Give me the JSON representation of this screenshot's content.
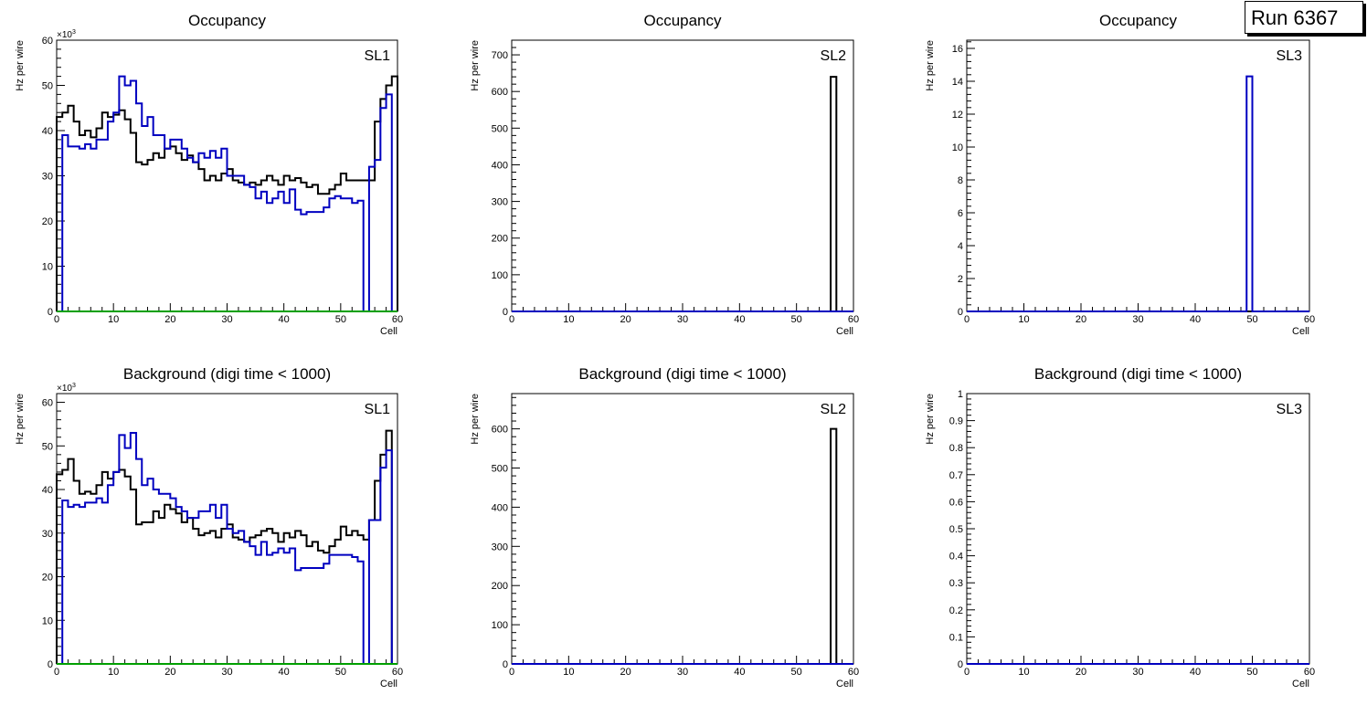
{
  "canvas": {
    "run_label": "Run 6367",
    "colors": {
      "frame": "#000000",
      "series_black": "#000000",
      "series_blue": "#0000c0",
      "series_green": "#00a000",
      "background": "#ffffff"
    }
  },
  "chart_data": [
    {
      "type": "histogram",
      "title": "Occupancy",
      "label": "SL1",
      "xlabel": "Cell",
      "ylabel": "Hz per wire",
      "xlim": [
        0,
        60
      ],
      "ylim": [
        0,
        60
      ],
      "multiplier": "×10",
      "multiplier_exp": "3",
      "xticks": [
        "0",
        "10",
        "20",
        "30",
        "40",
        "50",
        "60"
      ],
      "yticks": [
        "0",
        "10",
        "20",
        "30",
        "40",
        "50",
        "60"
      ],
      "ytick_values": [
        0,
        10,
        20,
        30,
        40,
        50,
        60
      ],
      "series": [
        {
          "name": "layer-black",
          "color": "#000000",
          "values": [
            43,
            44,
            45.5,
            42,
            39,
            40,
            38.5,
            40.5,
            44,
            43,
            43.5,
            44.5,
            42.5,
            39.5,
            33,
            32.5,
            33.5,
            35,
            34,
            36,
            36.5,
            35,
            33.5,
            34.5,
            33,
            31.5,
            29,
            30,
            29,
            30.5,
            31.5,
            29,
            28.5,
            28,
            28.5,
            28,
            29,
            30,
            29,
            28,
            30,
            29,
            29.5,
            28.5,
            27.5,
            28,
            26,
            26,
            27,
            28,
            30.5,
            29,
            29,
            29,
            29,
            29,
            42,
            47,
            50,
            52
          ]
        },
        {
          "name": "layer-blue",
          "color": "#0000c0",
          "values": [
            0,
            39,
            36.5,
            36.5,
            36,
            37,
            36,
            38,
            38,
            42,
            44,
            52,
            50,
            51,
            46,
            41,
            43,
            39,
            39,
            36,
            38,
            38,
            36,
            34,
            33,
            35,
            34,
            35.5,
            34,
            36,
            30,
            30,
            30,
            28,
            27.5,
            25,
            26.5,
            24,
            25,
            26.5,
            24,
            27,
            22.5,
            21.5,
            22,
            22,
            22,
            23,
            25,
            25.5,
            25,
            25,
            24,
            24.5,
            0,
            32,
            33.5,
            45,
            48,
            0
          ]
        },
        {
          "name": "layer-green",
          "color": "#00a000",
          "values": [
            0,
            0,
            0,
            0,
            0,
            0,
            0,
            0,
            0,
            0,
            0,
            0,
            0,
            0,
            0,
            0,
            0,
            0,
            0,
            0,
            0,
            0,
            0,
            0,
            0,
            0,
            0,
            0,
            0,
            0,
            0,
            0,
            0,
            0,
            0,
            0,
            0,
            0,
            0,
            0,
            0,
            0,
            0,
            0,
            0,
            0,
            0,
            0,
            0,
            0,
            0,
            0,
            0,
            0,
            0,
            0,
            0,
            0,
            0,
            0
          ]
        }
      ]
    },
    {
      "type": "histogram",
      "title": "Occupancy",
      "label": "SL2",
      "xlabel": "Cell",
      "ylabel": "Hz per wire",
      "xlim": [
        0,
        60
      ],
      "ylim": [
        0,
        740
      ],
      "xticks": [
        "0",
        "10",
        "20",
        "30",
        "40",
        "50",
        "60"
      ],
      "yticks": [
        "0",
        "100",
        "200",
        "300",
        "400",
        "500",
        "600",
        "700"
      ],
      "ytick_values": [
        0,
        100,
        200,
        300,
        400,
        500,
        600,
        700
      ],
      "series": [
        {
          "name": "layer-black",
          "color": "#000000",
          "spikes": [
            [
              56,
              640
            ]
          ]
        },
        {
          "name": "layer-blue",
          "color": "#0000c0",
          "spikes": []
        }
      ]
    },
    {
      "type": "histogram",
      "title": "Occupancy",
      "label": "SL3",
      "xlabel": "Cell",
      "ylabel": "Hz per wire",
      "xlim": [
        0,
        60
      ],
      "ylim": [
        0,
        16.5
      ],
      "xticks": [
        "0",
        "10",
        "20",
        "30",
        "40",
        "50",
        "60"
      ],
      "yticks": [
        "0",
        "2",
        "4",
        "6",
        "8",
        "10",
        "12",
        "14",
        "16"
      ],
      "ytick_values": [
        0,
        2,
        4,
        6,
        8,
        10,
        12,
        14,
        16
      ],
      "series": [
        {
          "name": "layer-black",
          "color": "#000000",
          "spikes": []
        },
        {
          "name": "layer-blue",
          "color": "#0000c0",
          "spikes": [
            [
              49,
              14.3
            ]
          ]
        }
      ]
    },
    {
      "type": "histogram",
      "title": "Background (digi time < 1000)",
      "label": "SL1",
      "xlabel": "Cell",
      "ylabel": "Hz per wire",
      "xlim": [
        0,
        60
      ],
      "ylim": [
        0,
        62
      ],
      "multiplier": "×10",
      "multiplier_exp": "3",
      "xticks": [
        "0",
        "10",
        "20",
        "30",
        "40",
        "50",
        "60"
      ],
      "yticks": [
        "0",
        "10",
        "20",
        "30",
        "40",
        "50",
        "60"
      ],
      "ytick_values": [
        0,
        10,
        20,
        30,
        40,
        50,
        60
      ],
      "series": [
        {
          "name": "layer-black",
          "color": "#000000",
          "values": [
            43.5,
            44.5,
            47,
            42,
            39,
            39.5,
            39,
            41,
            44,
            42.5,
            44,
            44.5,
            43,
            40,
            32,
            32.5,
            32.5,
            35,
            33.5,
            36.5,
            35.5,
            34.5,
            32.5,
            33.5,
            31,
            29.5,
            30,
            30.5,
            29,
            31,
            32,
            29,
            28.5,
            28,
            29,
            29.5,
            30.5,
            31,
            30,
            28,
            30,
            29,
            30.5,
            29.5,
            27,
            28,
            26,
            25.5,
            27,
            28.5,
            31.5,
            29.5,
            30.5,
            29.5,
            28.5,
            33,
            42,
            48,
            53.5,
            0
          ]
        },
        {
          "name": "layer-blue",
          "color": "#0000c0",
          "values": [
            0,
            37.5,
            36,
            36.5,
            36,
            37,
            37,
            38,
            37,
            41,
            44,
            52.5,
            49.5,
            53,
            47,
            41,
            42.5,
            40,
            39,
            39,
            38,
            36,
            35,
            33.5,
            33.5,
            35,
            35,
            36.5,
            33.5,
            36.5,
            31,
            30,
            30.5,
            28,
            27,
            25,
            28,
            25,
            25.5,
            26.5,
            25.5,
            26.5,
            21.5,
            22,
            22,
            22,
            22,
            23,
            25,
            25,
            25,
            25,
            24.5,
            23.5,
            0,
            33,
            33,
            45,
            49,
            0
          ]
        },
        {
          "name": "layer-green",
          "color": "#00a000",
          "values": [
            0,
            0,
            0,
            0,
            0,
            0,
            0,
            0,
            0,
            0,
            0,
            0,
            0,
            0,
            0,
            0,
            0,
            0,
            0,
            0,
            0,
            0,
            0,
            0,
            0,
            0,
            0,
            0,
            0,
            0,
            0,
            0,
            0,
            0,
            0,
            0,
            0,
            0,
            0,
            0,
            0,
            0,
            0,
            0,
            0,
            0,
            0,
            0,
            0,
            0,
            0,
            0,
            0,
            0,
            0,
            0,
            0,
            0,
            0,
            0
          ]
        }
      ]
    },
    {
      "type": "histogram",
      "title": "Background (digi time < 1000)",
      "label": "SL2",
      "xlabel": "Cell",
      "ylabel": "Hz per wire",
      "xlim": [
        0,
        60
      ],
      "ylim": [
        0,
        690
      ],
      "xticks": [
        "0",
        "10",
        "20",
        "30",
        "40",
        "50",
        "60"
      ],
      "yticks": [
        "0",
        "100",
        "200",
        "300",
        "400",
        "500",
        "600"
      ],
      "ytick_values": [
        0,
        100,
        200,
        300,
        400,
        500,
        600
      ],
      "series": [
        {
          "name": "layer-black",
          "color": "#000000",
          "spikes": [
            [
              56,
              600
            ]
          ]
        },
        {
          "name": "layer-blue",
          "color": "#0000c0",
          "spikes": []
        }
      ]
    },
    {
      "type": "histogram",
      "title": "Background (digi time < 1000)",
      "label": "SL3",
      "xlabel": "Cell",
      "ylabel": "Hz per wire",
      "xlim": [
        0,
        60
      ],
      "ylim": [
        0,
        1
      ],
      "xticks": [
        "0",
        "10",
        "20",
        "30",
        "40",
        "50",
        "60"
      ],
      "yticks": [
        "0",
        "0.1",
        "0.2",
        "0.3",
        "0.4",
        "0.5",
        "0.6",
        "0.7",
        "0.8",
        "0.9",
        "1"
      ],
      "ytick_values": [
        0,
        0.1,
        0.2,
        0.3,
        0.4,
        0.5,
        0.6,
        0.7,
        0.8,
        0.9,
        1
      ],
      "series": [
        {
          "name": "layer-black",
          "color": "#000000",
          "spikes": []
        },
        {
          "name": "layer-blue",
          "color": "#0000c0",
          "spikes": []
        }
      ]
    }
  ]
}
